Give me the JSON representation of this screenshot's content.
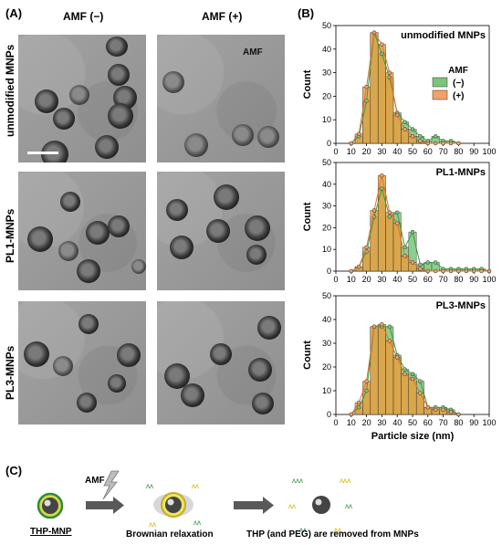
{
  "panel_labels": {
    "a": "(A)",
    "b": "(B)",
    "c": "(C)"
  },
  "panel_a": {
    "col_headers": [
      "AMF (−)",
      "AMF (+)"
    ],
    "row_labels": [
      "unmodified MNPs",
      "PL1-MNPs",
      "PL3-MNPs"
    ],
    "amf_tag": "AMF"
  },
  "chart_data": [
    {
      "type": "bar",
      "title": "unmodified MNPs",
      "xlabel": "",
      "ylabel": "Count",
      "ylim": [
        0,
        50
      ],
      "xlim": [
        0,
        100
      ],
      "xticks": [
        0,
        10,
        20,
        30,
        40,
        50,
        60,
        70,
        80,
        90,
        100
      ],
      "yticks": [
        0,
        10,
        20,
        30,
        40,
        50
      ],
      "legend": {
        "title": "AMF",
        "placement": "right"
      },
      "x": [
        10,
        15,
        20,
        25,
        30,
        35,
        40,
        45,
        50,
        55,
        60,
        65,
        70,
        75,
        80
      ],
      "series": [
        {
          "name": "(−)",
          "color": "#7cc47c",
          "values": [
            0,
            3,
            18,
            47,
            38,
            28,
            13,
            9,
            6,
            3,
            1,
            3,
            1,
            1,
            0
          ]
        },
        {
          "name": "(+)",
          "color": "#f4a068",
          "values": [
            0,
            4,
            24,
            47,
            42,
            30,
            12,
            6,
            3,
            1,
            0,
            0,
            0,
            0,
            0
          ]
        }
      ]
    },
    {
      "type": "bar",
      "title": "PL1-MNPs",
      "xlabel": "",
      "ylabel": "Count",
      "ylim": [
        0,
        50
      ],
      "xlim": [
        0,
        100
      ],
      "xticks": [
        0,
        10,
        20,
        30,
        40,
        50,
        60,
        70,
        80,
        90,
        100
      ],
      "yticks": [
        0,
        10,
        20,
        30,
        40,
        50
      ],
      "x": [
        10,
        15,
        20,
        25,
        30,
        35,
        40,
        45,
        50,
        55,
        60,
        65,
        70,
        75,
        80,
        85,
        90,
        95,
        100
      ],
      "series": [
        {
          "name": "(−)",
          "color": "#7cc47c",
          "values": [
            0,
            2,
            9,
            25,
            38,
            25,
            27,
            11,
            18,
            3,
            4,
            4,
            1,
            1,
            1,
            1,
            1,
            1,
            0
          ]
        },
        {
          "name": "(+)",
          "color": "#f4a068",
          "values": [
            0,
            2,
            11,
            28,
            44,
            27,
            22,
            7,
            4,
            1,
            0,
            0,
            0,
            0,
            0,
            0,
            0,
            0,
            0
          ]
        }
      ]
    },
    {
      "type": "bar",
      "title": "PL3-MNPs",
      "xlabel": "Particle size (nm)",
      "ylabel": "Count",
      "ylim": [
        0,
        50
      ],
      "xlim": [
        0,
        100
      ],
      "xticks": [
        0,
        10,
        20,
        30,
        40,
        50,
        60,
        70,
        80,
        90,
        100
      ],
      "yticks": [
        0,
        10,
        20,
        30,
        40,
        50
      ],
      "x": [
        10,
        15,
        20,
        25,
        30,
        35,
        40,
        45,
        50,
        55,
        60,
        65,
        70,
        75,
        80
      ],
      "series": [
        {
          "name": "(−)",
          "color": "#7cc47c",
          "values": [
            0,
            3,
            10,
            37,
            37,
            37,
            25,
            19,
            17,
            14,
            3,
            3,
            3,
            2,
            0
          ]
        },
        {
          "name": "(+)",
          "color": "#f4a068",
          "values": [
            0,
            5,
            14,
            37,
            38,
            31,
            24,
            17,
            15,
            9,
            3,
            2,
            2,
            1,
            0
          ]
        }
      ]
    }
  ],
  "panel_c": {
    "amf_label": "AMF",
    "thp_label": "THP-MNP",
    "brownian_label": "Brownian relaxation",
    "removed_label": "THP (and PEG) are removed from MNPs"
  }
}
